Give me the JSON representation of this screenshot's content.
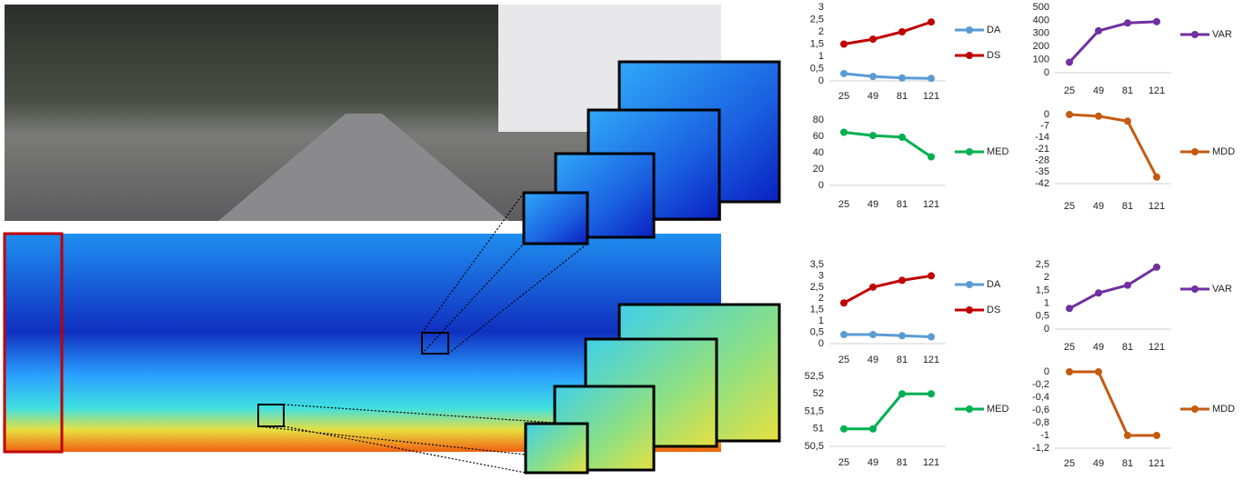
{
  "chart_data": [
    {
      "type": "line",
      "categories": [
        "25",
        "49",
        "81",
        "121"
      ],
      "ylim": [
        0,
        3
      ],
      "yticks": [
        0,
        {
          "value": 0.5,
          "label": "0,5"
        },
        1,
        {
          "value": 1.5,
          "label": "1,5"
        },
        2,
        {
          "value": 2.5,
          "label": "2,5"
        },
        3
      ],
      "legend": "right",
      "series": [
        {
          "name": "DA",
          "color": "#5b9bd5",
          "values": [
            0.3,
            0.18,
            0.12,
            0.1
          ]
        },
        {
          "name": "DS",
          "color": "#c00000",
          "values": [
            1.5,
            1.7,
            2.0,
            2.4
          ]
        }
      ]
    },
    {
      "type": "line",
      "categories": [
        "25",
        "49",
        "81",
        "121"
      ],
      "ylim": [
        0,
        500
      ],
      "yticks": [
        0,
        100,
        200,
        300,
        400,
        500
      ],
      "legend": "right",
      "series": [
        {
          "name": "VAR",
          "color": "#7030a0",
          "values": [
            80,
            320,
            380,
            390
          ]
        }
      ]
    },
    {
      "type": "line",
      "categories": [
        "25",
        "49",
        "81",
        "121"
      ],
      "ylim": [
        0,
        80
      ],
      "yticks": [
        0,
        20,
        40,
        60,
        80
      ],
      "legend": "right",
      "series": [
        {
          "name": "MED",
          "color": "#00b050",
          "values": [
            65,
            61,
            59,
            35
          ]
        }
      ]
    },
    {
      "type": "line",
      "categories": [
        "25",
        "49",
        "81",
        "121"
      ],
      "ylim": [
        -42,
        0
      ],
      "yticks": [
        0,
        -7,
        -14,
        -21,
        -28,
        -35,
        -42
      ],
      "legend": "right",
      "series": [
        {
          "name": "MDD",
          "color": "#c55a11",
          "values": [
            0,
            -1,
            -4,
            -38
          ]
        }
      ]
    },
    {
      "type": "line",
      "categories": [
        "25",
        "49",
        "81",
        "121"
      ],
      "ylim": [
        0,
        3.5
      ],
      "yticks": [
        0,
        {
          "value": 0.5,
          "label": "0,5"
        },
        1,
        {
          "value": 1.5,
          "label": "1,5"
        },
        2,
        {
          "value": 2.5,
          "label": "2,5"
        },
        3,
        {
          "value": 3.5,
          "label": "3,5"
        }
      ],
      "legend": "right",
      "series": [
        {
          "name": "DA",
          "color": "#5b9bd5",
          "values": [
            0.4,
            0.4,
            0.35,
            0.3
          ]
        },
        {
          "name": "DS",
          "color": "#c00000",
          "values": [
            1.8,
            2.5,
            2.8,
            3.0
          ]
        }
      ]
    },
    {
      "type": "line",
      "categories": [
        "25",
        "49",
        "81",
        "121"
      ],
      "ylim": [
        0,
        2.5
      ],
      "yticks": [
        0,
        {
          "value": 0.5,
          "label": "0,5"
        },
        1,
        {
          "value": 1.5,
          "label": "1,5"
        },
        2,
        {
          "value": 2.5,
          "label": "2,5"
        }
      ],
      "legend": "right",
      "series": [
        {
          "name": "VAR",
          "color": "#7030a0",
          "values": [
            0.8,
            1.4,
            1.7,
            2.4
          ]
        }
      ]
    },
    {
      "type": "line",
      "categories": [
        "25",
        "49",
        "81",
        "121"
      ],
      "ylim": [
        50.5,
        52.5
      ],
      "yticks": [
        {
          "value": 50.5,
          "label": "50,5"
        },
        51,
        {
          "value": 51.5,
          "label": "51,5"
        },
        52,
        {
          "value": 52.5,
          "label": "52,5"
        }
      ],
      "legend": "right",
      "series": [
        {
          "name": "MED",
          "color": "#00b050",
          "values": [
            51,
            51,
            52,
            52
          ]
        }
      ]
    },
    {
      "type": "line",
      "categories": [
        "25",
        "49",
        "81",
        "121"
      ],
      "ylim": [
        -1.2,
        0
      ],
      "yticks": [
        0,
        {
          "value": -0.2,
          "label": "-0,2"
        },
        {
          "value": -0.4,
          "label": "-0,4"
        },
        {
          "value": -0.6,
          "label": "-0,6"
        },
        {
          "value": -0.8,
          "label": "-0,8"
        },
        -1,
        {
          "value": -1.2,
          "label": "-1,2"
        }
      ],
      "legend": "right",
      "series": [
        {
          "name": "MDD",
          "color": "#c55a11",
          "values": [
            0,
            0,
            -1,
            -1
          ]
        }
      ]
    }
  ]
}
